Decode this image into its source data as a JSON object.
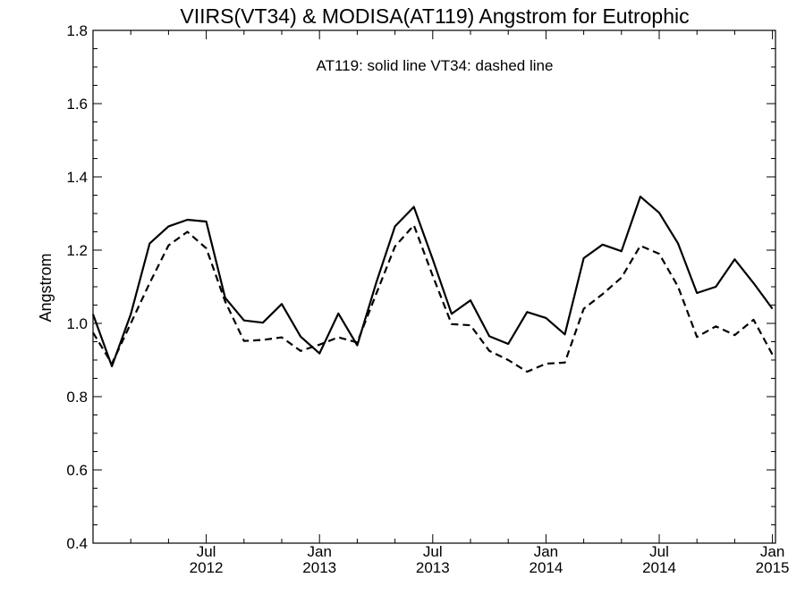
{
  "chart_data": {
    "type": "line",
    "title": "VIIRS(VT34) & MODISA(AT119)  Angstrom for Eutrophic",
    "annotation": "AT119: solid line   VT34: dashed line",
    "xlabel": "",
    "ylabel": "Angstrom",
    "ylim": [
      0.4,
      1.8
    ],
    "y_ticks": [
      "0.4",
      "0.6",
      "0.8",
      "1.0",
      "1.2",
      "1.4",
      "1.6",
      "1.8"
    ],
    "x_ticks": [
      {
        "m": "Jul",
        "y": "2012"
      },
      {
        "m": "Jan",
        "y": "2013"
      },
      {
        "m": "Jul",
        "y": "2013"
      },
      {
        "m": "Jan",
        "y": "2014"
      },
      {
        "m": "Jul",
        "y": "2014"
      },
      {
        "m": "Jan",
        "y": "2015"
      }
    ],
    "x": [
      "2012-01",
      "2012-02",
      "2012-03",
      "2012-04",
      "2012-05",
      "2012-06",
      "2012-07",
      "2012-08",
      "2012-09",
      "2012-10",
      "2012-11",
      "2012-12",
      "2013-01",
      "2013-02",
      "2013-03",
      "2013-04",
      "2013-05",
      "2013-06",
      "2013-07",
      "2013-08",
      "2013-09",
      "2013-10",
      "2013-11",
      "2013-12",
      "2014-01",
      "2014-02",
      "2014-03",
      "2014-04",
      "2014-05",
      "2014-06",
      "2014-07",
      "2014-08",
      "2014-09",
      "2014-10",
      "2014-11",
      "2014-12",
      "2015-01"
    ],
    "series": [
      {
        "name": "AT119",
        "style": "solid",
        "values": [
          1.025,
          0.883,
          1.025,
          1.218,
          1.265,
          1.283,
          1.278,
          1.07,
          1.008,
          1.002,
          1.053,
          0.964,
          0.918,
          1.027,
          0.94,
          1.11,
          1.265,
          1.318,
          1.175,
          1.026,
          1.063,
          0.965,
          0.944,
          1.031,
          1.015,
          0.97,
          1.178,
          1.215,
          1.197,
          1.346,
          1.302,
          1.218,
          1.083,
          1.1,
          1.175,
          1.11,
          1.04
        ]
      },
      {
        "name": "VT34",
        "style": "dashed",
        "values": [
          0.975,
          0.89,
          1.0,
          1.11,
          1.213,
          1.25,
          1.205,
          1.06,
          0.952,
          0.955,
          0.962,
          0.925,
          0.942,
          0.962,
          0.948,
          1.08,
          1.21,
          1.268,
          1.13,
          0.998,
          0.995,
          0.925,
          0.9,
          0.868,
          0.89,
          0.893,
          1.04,
          1.08,
          1.125,
          1.212,
          1.19,
          1.1,
          0.963,
          0.992,
          0.968,
          1.01,
          0.915
        ]
      }
    ]
  }
}
